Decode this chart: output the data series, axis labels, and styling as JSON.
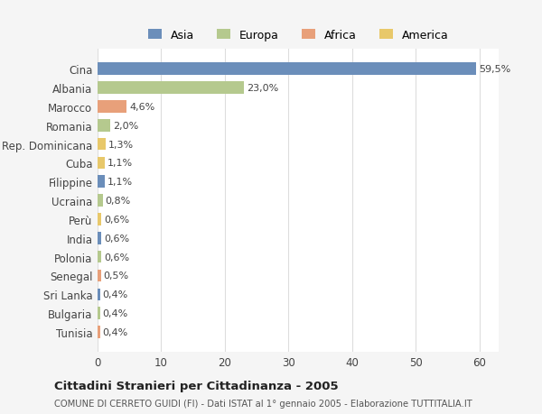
{
  "categories": [
    "Cina",
    "Albania",
    "Marocco",
    "Romania",
    "Rep. Dominicana",
    "Cuba",
    "Filippine",
    "Ucraina",
    "Perù",
    "India",
    "Polonia",
    "Senegal",
    "Sri Lanka",
    "Bulgaria",
    "Tunisia"
  ],
  "values": [
    59.5,
    23.0,
    4.6,
    2.0,
    1.3,
    1.1,
    1.1,
    0.8,
    0.6,
    0.6,
    0.6,
    0.5,
    0.4,
    0.4,
    0.4
  ],
  "labels": [
    "59,5%",
    "23,0%",
    "4,6%",
    "2,0%",
    "1,3%",
    "1,1%",
    "1,1%",
    "0,8%",
    "0,6%",
    "0,6%",
    "0,6%",
    "0,5%",
    "0,4%",
    "0,4%",
    "0,4%"
  ],
  "colors": [
    "#6b8eba",
    "#b5c98e",
    "#e8a07a",
    "#b5c98e",
    "#e8c86a",
    "#e8c86a",
    "#6b8eba",
    "#b5c98e",
    "#e8c86a",
    "#6b8eba",
    "#b5c98e",
    "#e8a07a",
    "#6b8eba",
    "#b5c98e",
    "#e8a07a"
  ],
  "legend_labels": [
    "Asia",
    "Europa",
    "Africa",
    "America"
  ],
  "legend_colors": [
    "#6b8eba",
    "#b5c98e",
    "#e8a07a",
    "#e8c86a"
  ],
  "xlim": [
    0,
    63
  ],
  "xticks": [
    0,
    10,
    20,
    30,
    40,
    50,
    60
  ],
  "title": "Cittadini Stranieri per Cittadinanza - 2005",
  "subtitle": "COMUNE DI CERRETO GUIDI (FI) - Dati ISTAT al 1° gennaio 2005 - Elaborazione TUTTITALIA.IT",
  "bg_color": "#f5f5f5",
  "plot_bg_color": "#ffffff",
  "grid_color": "#dddddd",
  "bar_height": 0.65
}
